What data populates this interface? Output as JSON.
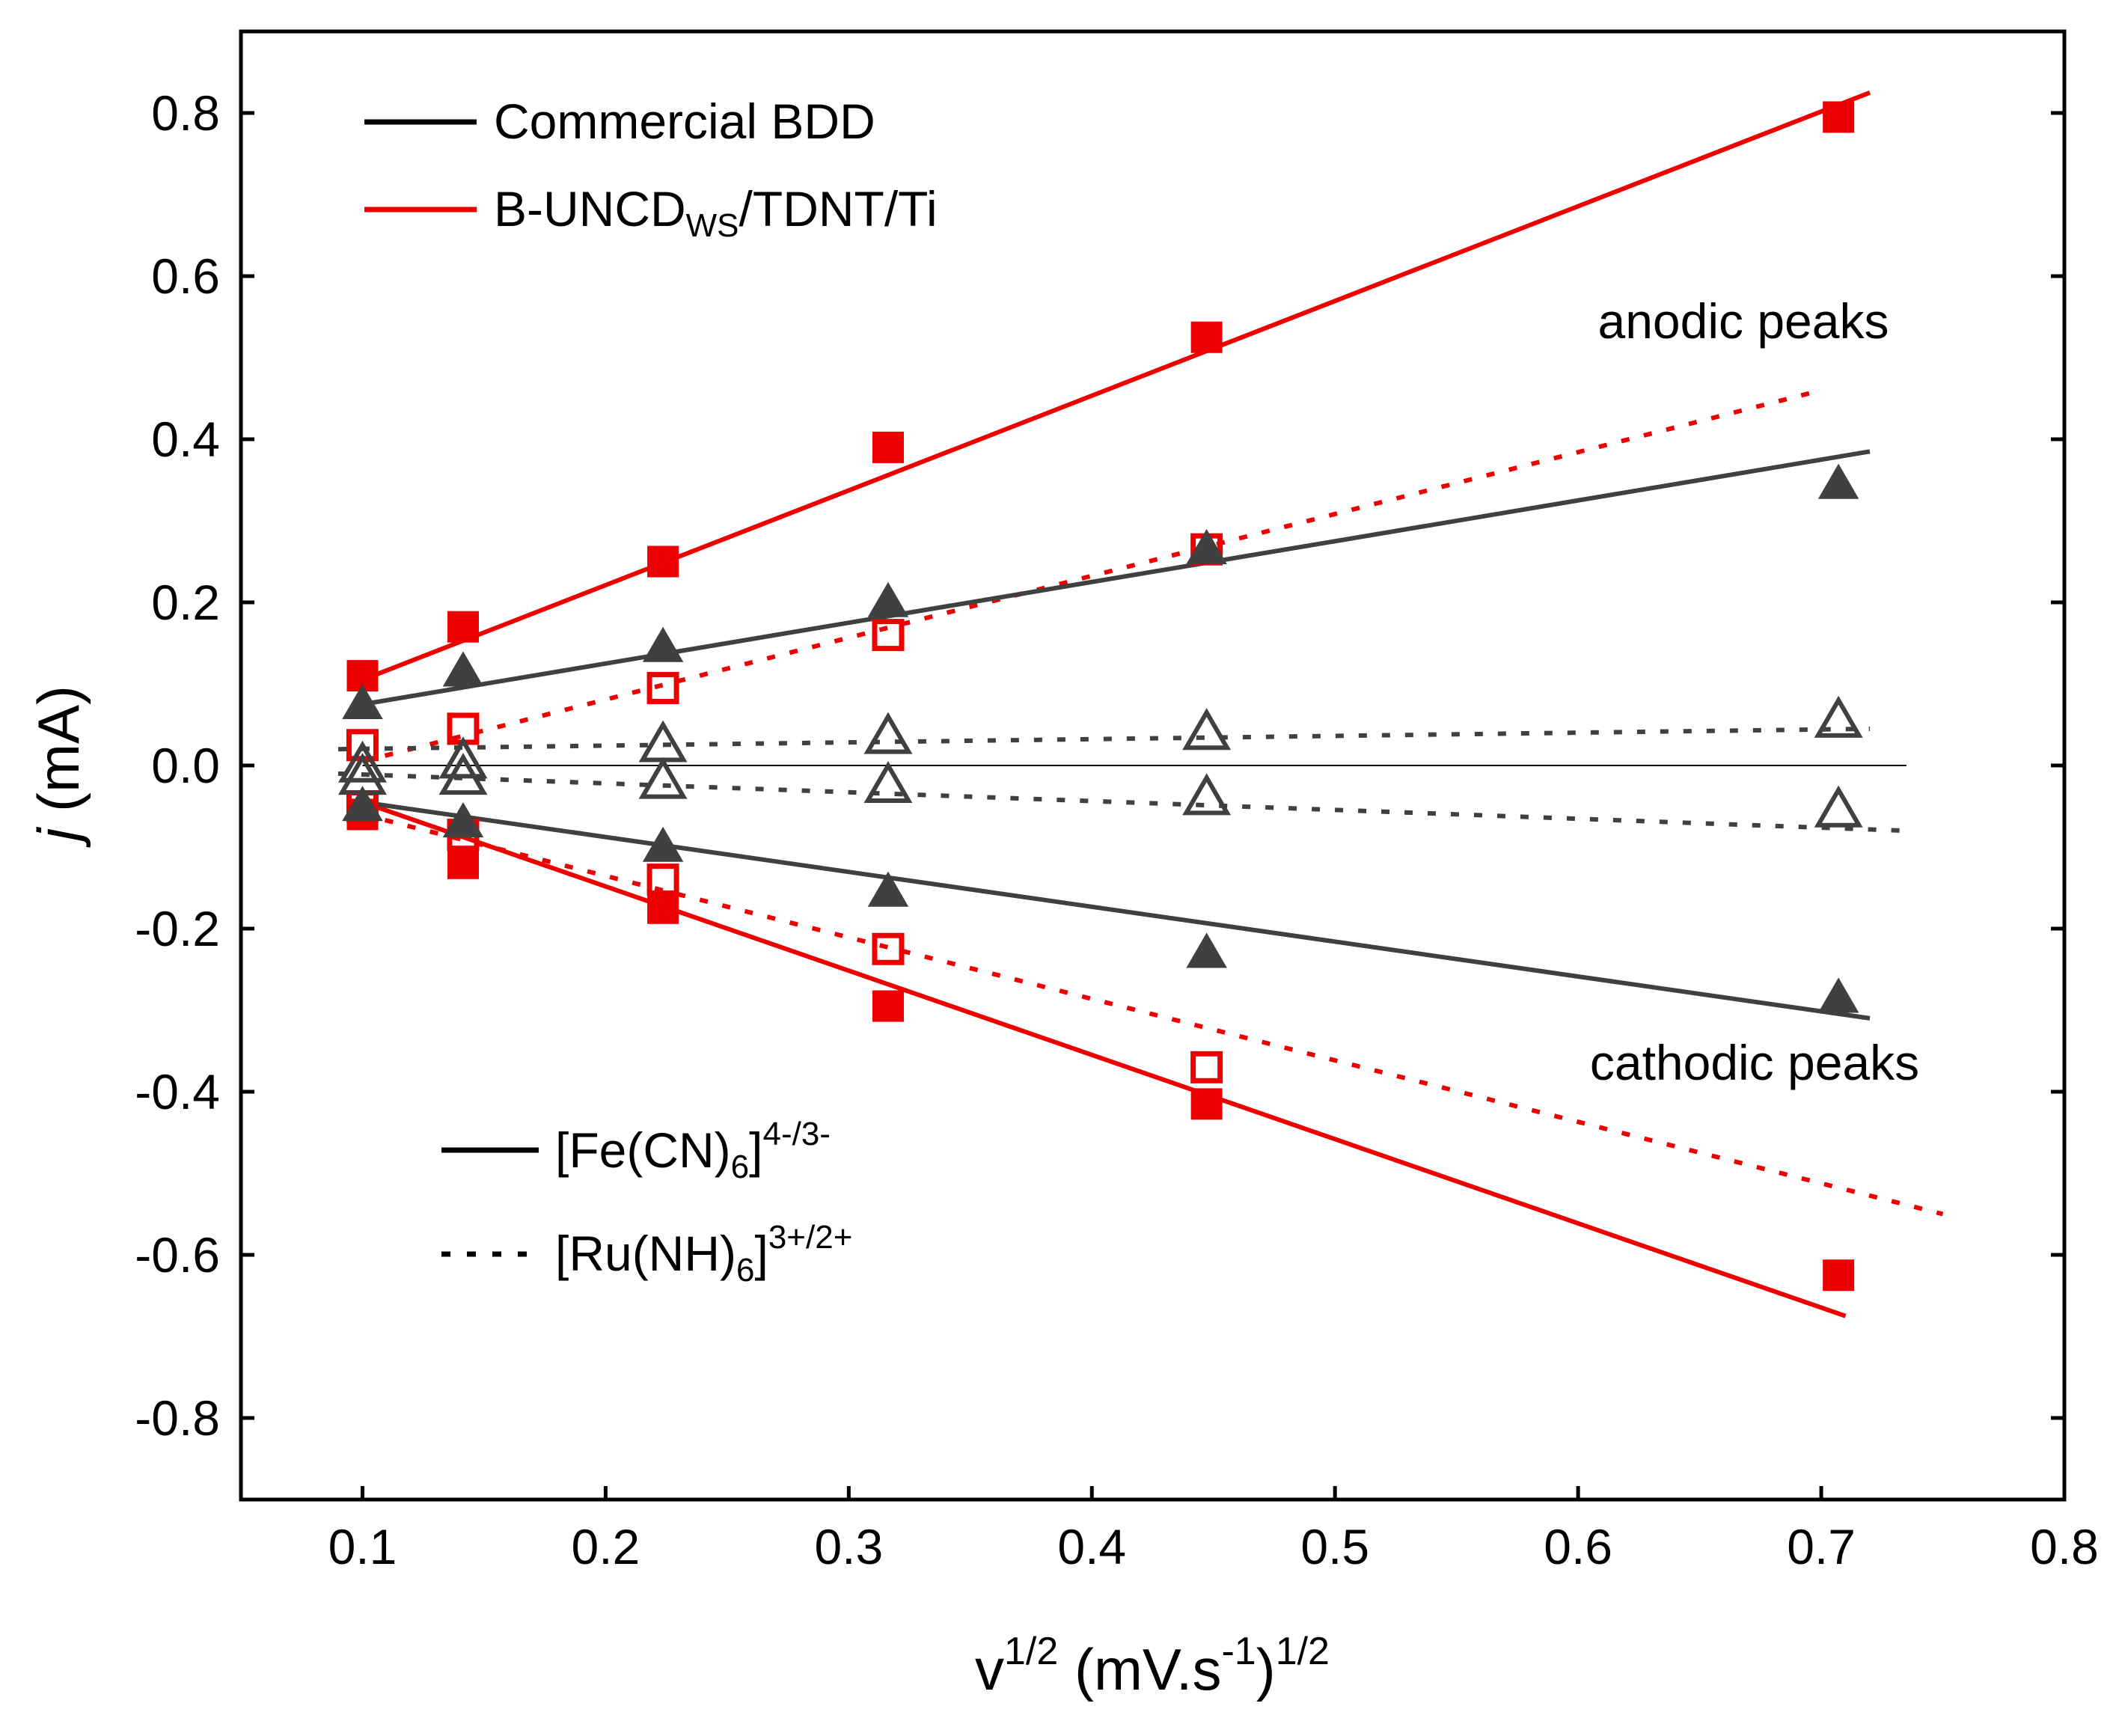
{
  "chart_data": {
    "type": "scatter",
    "xlabel": {
      "main": "v",
      "sup1": "1/2",
      "rest1": " (mV.s",
      "sup2": "-1",
      "rest2": ")",
      "sup3": "1/2"
    },
    "ylabel": {
      "italic": "j",
      "rest": " (mA)"
    },
    "xlim": [
      0.05,
      0.8
    ],
    "ylim": [
      -0.9,
      0.9
    ],
    "x_ticks": [
      0.1,
      0.2,
      0.3,
      0.4,
      0.5,
      0.6,
      0.7,
      0.8
    ],
    "x_tick_labels": [
      "0.1",
      "0.2",
      "0.3",
      "0.4",
      "0.5",
      "0.6",
      "0.7",
      "0.8"
    ],
    "y_ticks": [
      0.8,
      0.6,
      0.4,
      0.2,
      0.0,
      -0.2,
      -0.4,
      -0.6,
      -0.8
    ],
    "y_tick_labels": [
      "0.8",
      "0.6",
      "0.4",
      "0.2",
      "0.0",
      "-0.2",
      "-0.4",
      "-0.6",
      "-0.8"
    ],
    "annotations": {
      "anodic": "anodic peaks",
      "cathodic": "cathodic peaks"
    },
    "legend_materials": [
      {
        "label": "Commercial BDD",
        "color": "#000000"
      },
      {
        "label_main": "B-UNCD",
        "label_sub": "WS",
        "label_rest": "/TDNT/Ti",
        "color": "#ee0000"
      }
    ],
    "legend_redox": [
      {
        "label_main": "[Fe(CN)",
        "label_sub": "6",
        "label_bracket": "]",
        "label_sup": "4-/3-",
        "style": "solid"
      },
      {
        "label_main": "[Ru(NH)",
        "label_sub": "6",
        "label_bracket": "]",
        "label_sup": "3+/2+",
        "style": "dotted"
      }
    ],
    "colors": {
      "red": "#ee0000",
      "dark": "#404040",
      "black": "#000000"
    },
    "x": [
      0.1,
      0.1414,
      0.2236,
      0.3162,
      0.4472,
      0.7071
    ],
    "series": [
      {
        "name": "B-UNCD Fe(CN)6 anodic",
        "marker": "square-filled",
        "color": "#ee0000",
        "values": [
          0.11,
          0.17,
          0.25,
          0.39,
          0.525,
          0.795
        ],
        "fit": {
          "x": [
            0.1,
            0.72
          ],
          "y": [
            0.105,
            0.825
          ],
          "style": "solid"
        }
      },
      {
        "name": "B-UNCD Fe(CN)6 cathodic",
        "marker": "square-filled",
        "color": "#ee0000",
        "values": [
          -0.06,
          -0.12,
          -0.175,
          -0.295,
          -0.415,
          -0.625
        ],
        "fit": {
          "x": [
            0.1,
            0.71
          ],
          "y": [
            -0.045,
            -0.675
          ],
          "style": "solid"
        }
      },
      {
        "name": "B-UNCD Ru(NH)6 anodic",
        "marker": "square-open",
        "color": "#ee0000",
        "values": [
          0.025,
          0.045,
          0.095,
          0.16,
          0.265,
          null
        ],
        "fit": {
          "x": [
            0.1,
            0.7
          ],
          "y": [
            0.005,
            0.46
          ],
          "style": "dotted"
        }
      },
      {
        "name": "B-UNCD Ru(NH)6 cathodic",
        "marker": "square-open",
        "color": "#ee0000",
        "values": [
          -0.05,
          -0.085,
          -0.14,
          -0.225,
          -0.37,
          null
        ],
        "fit": {
          "x": [
            0.1,
            0.75
          ],
          "y": [
            -0.06,
            -0.55
          ],
          "style": "dotted"
        }
      },
      {
        "name": "BDD Fe(CN)6 anodic",
        "marker": "triangle-filled",
        "color": "#404040",
        "values": [
          0.075,
          0.115,
          0.145,
          0.2,
          0.265,
          0.345
        ],
        "fit": {
          "x": [
            0.1,
            0.72
          ],
          "y": [
            0.075,
            0.385
          ],
          "style": "solid"
        }
      },
      {
        "name": "BDD Fe(CN)6 cathodic",
        "marker": "triangle-filled",
        "color": "#404040",
        "values": [
          -0.05,
          -0.07,
          -0.1,
          -0.155,
          -0.23,
          -0.285
        ],
        "fit": {
          "x": [
            0.1,
            0.72
          ],
          "y": [
            -0.045,
            -0.31
          ],
          "style": "solid"
        }
      },
      {
        "name": "BDD Ru(NH)6 anodic",
        "marker": "triangle-open",
        "color": "#404040",
        "values": [
          0.0,
          0.005,
          0.025,
          0.035,
          0.04,
          0.055
        ],
        "fit": {
          "x": [
            0.09,
            0.72
          ],
          "y": [
            0.02,
            0.045
          ],
          "style": "dotted"
        }
      },
      {
        "name": "BDD Ru(NH)6 cathodic",
        "marker": "triangle-open",
        "color": "#404040",
        "values": [
          -0.015,
          -0.015,
          -0.02,
          -0.025,
          -0.04,
          -0.055
        ],
        "fit": {
          "x": [
            0.09,
            0.735
          ],
          "y": [
            -0.01,
            -0.08
          ],
          "style": "dotted"
        }
      }
    ],
    "zero_line": {
      "x": [
        0.1,
        0.735
      ],
      "y": 0.0
    }
  }
}
